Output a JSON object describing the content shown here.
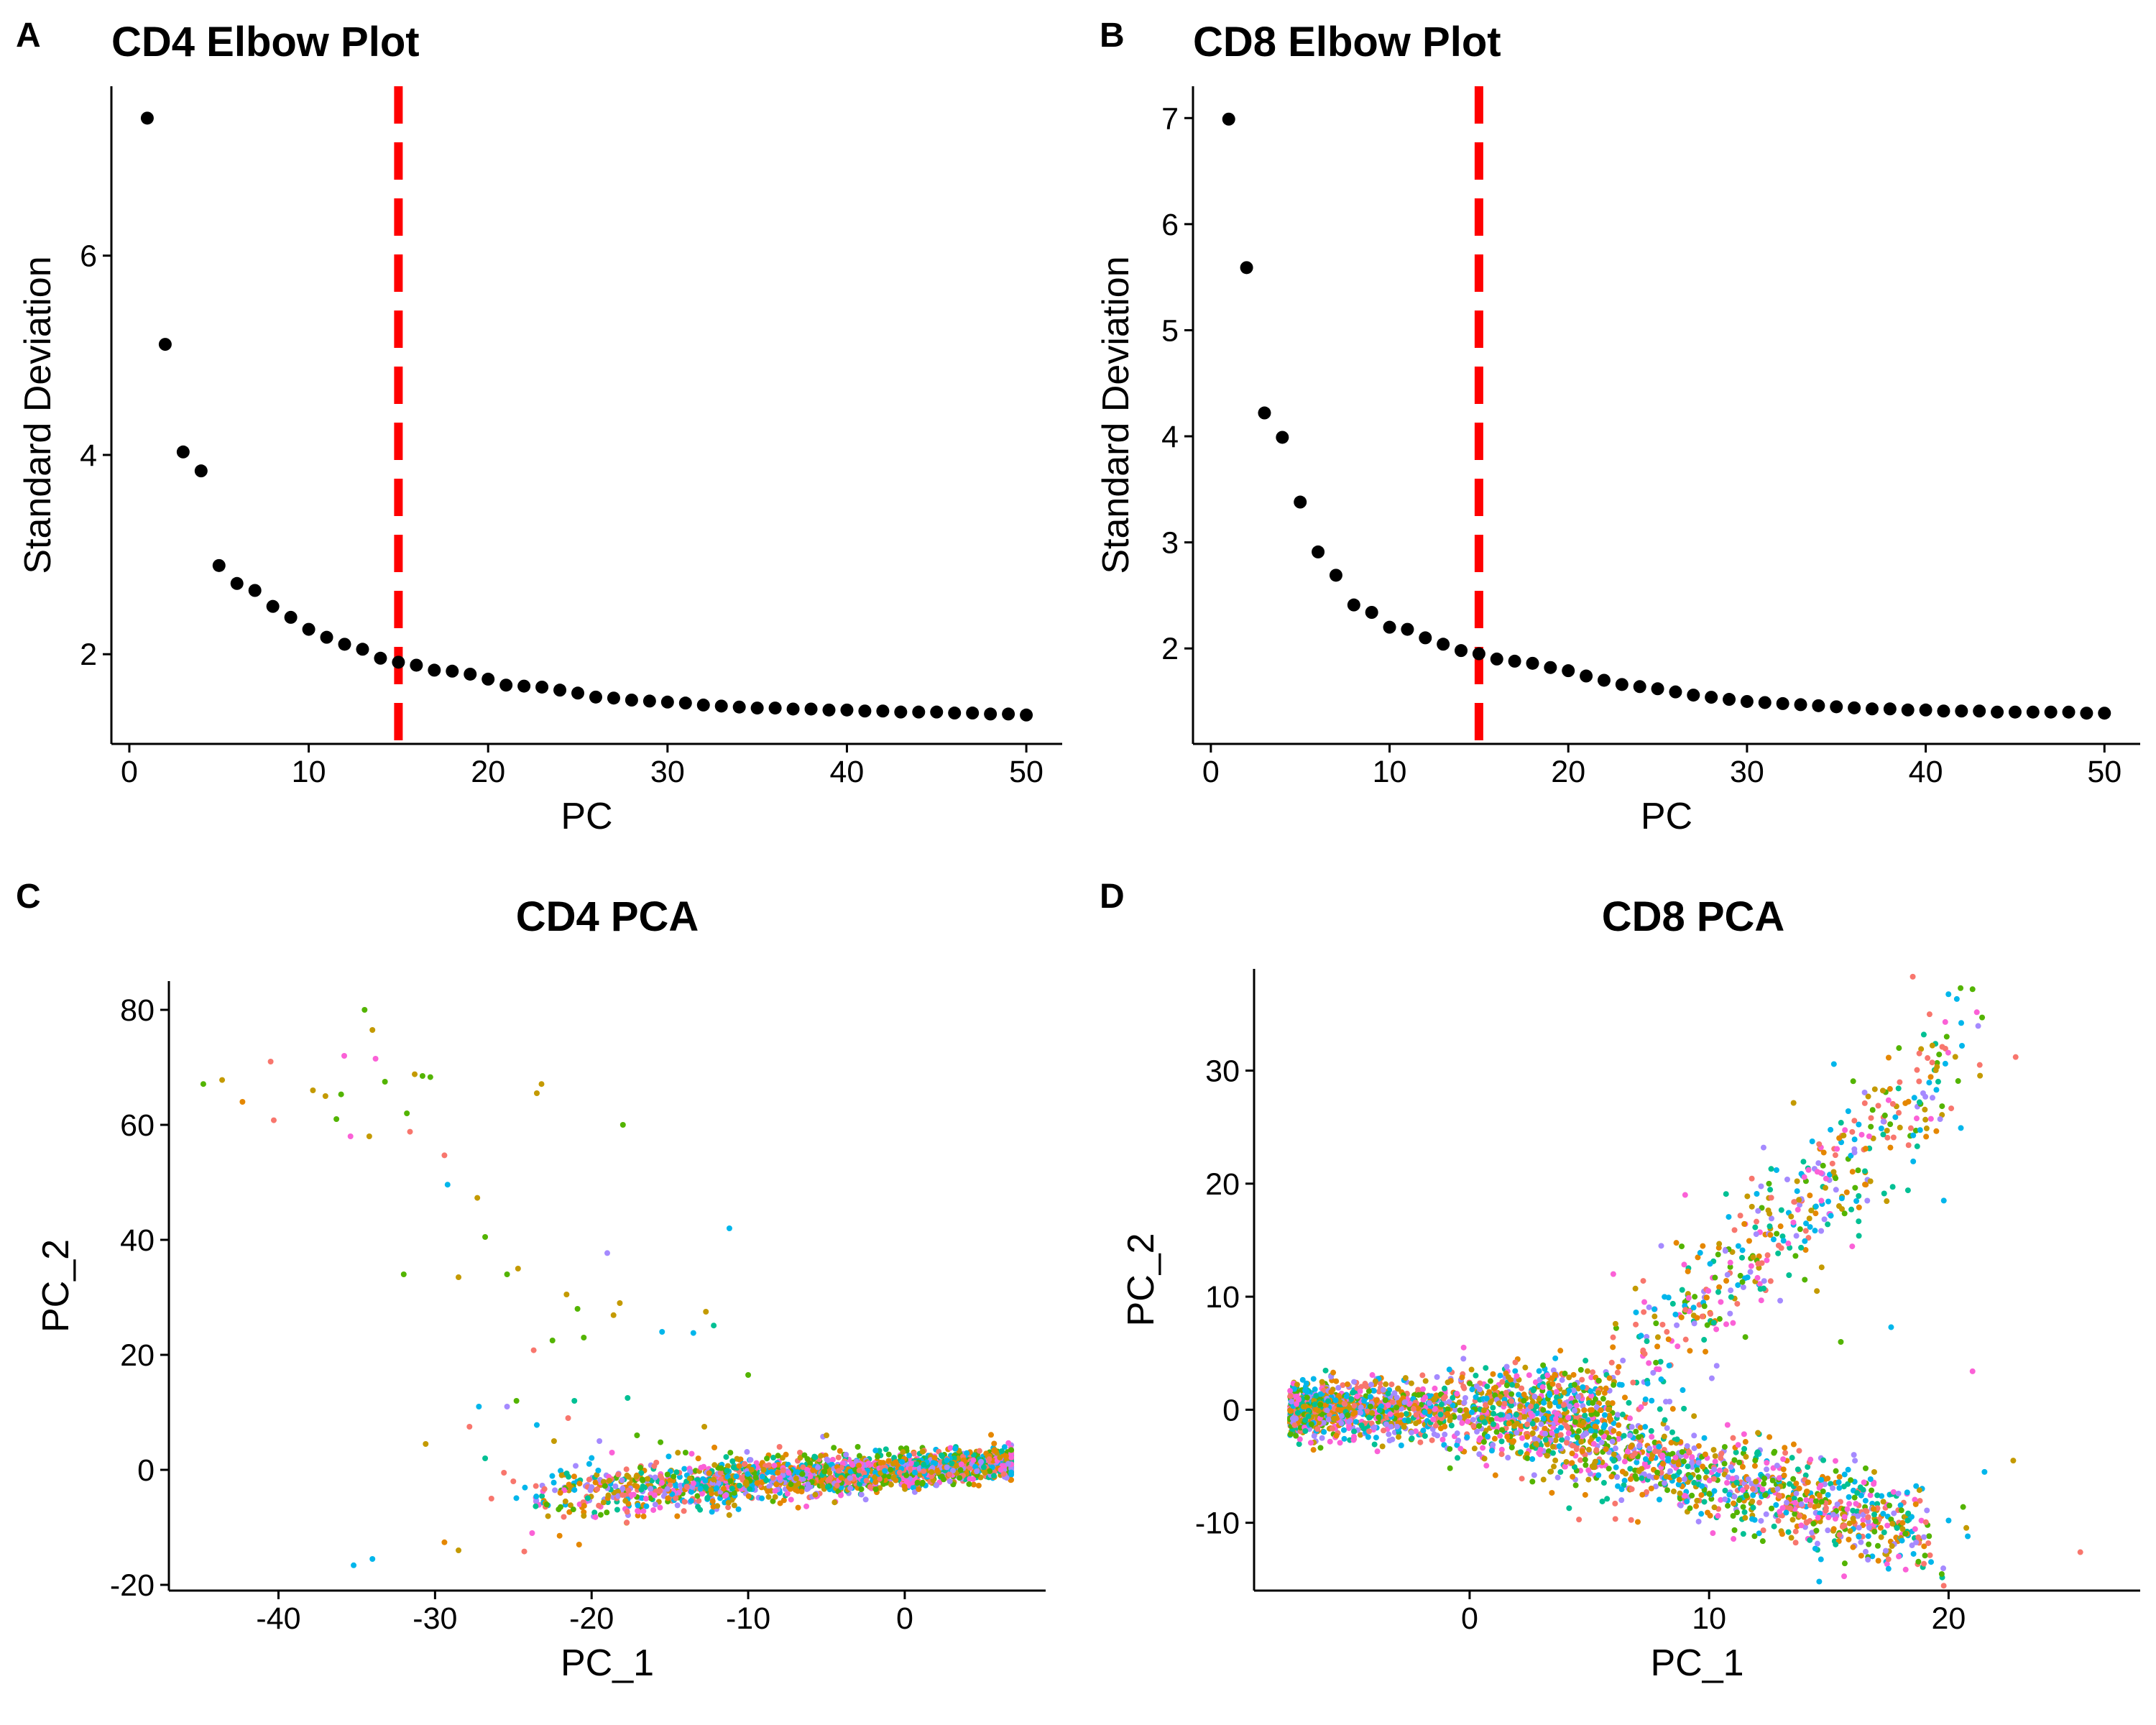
{
  "chart_data": [
    {
      "panel": "A",
      "type": "scatter",
      "title": "CD4 Elbow Plot",
      "xlabel": "PC",
      "ylabel": "Standard Deviation",
      "xlim": [
        -1,
        52
      ],
      "ylim": [
        1.1,
        7.7
      ],
      "xticks": [
        0,
        10,
        20,
        30,
        40,
        50
      ],
      "yticks": [
        2,
        4,
        6
      ],
      "point_color": "#000000",
      "cutoff_line": {
        "x": 15,
        "color": "#ff0000",
        "style": "dashed"
      },
      "x": [
        1,
        2,
        3,
        4,
        5,
        6,
        7,
        8,
        9,
        10,
        11,
        12,
        13,
        14,
        15,
        16,
        17,
        18,
        19,
        20,
        21,
        22,
        23,
        24,
        25,
        26,
        27,
        28,
        29,
        30,
        31,
        32,
        33,
        34,
        35,
        36,
        37,
        38,
        39,
        40,
        41,
        42,
        43,
        44,
        45,
        46,
        47,
        48,
        49,
        50
      ],
      "y": [
        7.38,
        5.11,
        4.03,
        3.84,
        2.89,
        2.71,
        2.64,
        2.48,
        2.37,
        2.25,
        2.17,
        2.1,
        2.05,
        1.96,
        1.92,
        1.89,
        1.84,
        1.83,
        1.8,
        1.75,
        1.69,
        1.68,
        1.67,
        1.64,
        1.61,
        1.57,
        1.56,
        1.54,
        1.53,
        1.52,
        1.51,
        1.49,
        1.48,
        1.47,
        1.46,
        1.46,
        1.45,
        1.45,
        1.44,
        1.44,
        1.43,
        1.43,
        1.42,
        1.42,
        1.42,
        1.41,
        1.41,
        1.4,
        1.4,
        1.39
      ]
    },
    {
      "panel": "B",
      "type": "scatter",
      "title": "CD8 Elbow Plot",
      "xlabel": "PC",
      "ylabel": "Standard Deviation",
      "xlim": [
        -1,
        52
      ],
      "ylim": [
        1.1,
        7.3
      ],
      "xticks": [
        0,
        10,
        20,
        30,
        40,
        50
      ],
      "yticks": [
        2,
        3,
        4,
        5,
        6,
        7
      ],
      "point_color": "#000000",
      "cutoff_line": {
        "x": 15,
        "color": "#ff0000",
        "style": "dashed"
      },
      "x": [
        1,
        2,
        3,
        4,
        5,
        6,
        7,
        8,
        9,
        10,
        11,
        12,
        13,
        14,
        15,
        16,
        17,
        18,
        19,
        20,
        21,
        22,
        23,
        24,
        25,
        26,
        27,
        28,
        29,
        30,
        31,
        32,
        33,
        34,
        35,
        36,
        37,
        38,
        39,
        40,
        41,
        42,
        43,
        44,
        45,
        46,
        47,
        48,
        49,
        50
      ],
      "y": [
        6.99,
        5.59,
        4.22,
        3.99,
        3.38,
        2.91,
        2.69,
        2.41,
        2.34,
        2.2,
        2.18,
        2.1,
        2.04,
        1.98,
        1.95,
        1.9,
        1.88,
        1.86,
        1.82,
        1.79,
        1.74,
        1.7,
        1.66,
        1.64,
        1.62,
        1.59,
        1.56,
        1.54,
        1.52,
        1.5,
        1.49,
        1.48,
        1.47,
        1.46,
        1.45,
        1.44,
        1.43,
        1.43,
        1.42,
        1.42,
        1.41,
        1.41,
        1.41,
        1.4,
        1.4,
        1.4,
        1.4,
        1.4,
        1.39,
        1.39
      ]
    },
    {
      "panel": "C",
      "type": "scatter",
      "title": "CD4 PCA",
      "xlabel": "PC_1",
      "ylabel": "PC_2",
      "xlim": [
        -47,
        9
      ],
      "ylim": [
        -21,
        85
      ],
      "xticks": [
        -40,
        -30,
        -20,
        -10,
        0
      ],
      "yticks": [
        -20,
        0,
        20,
        40,
        60,
        80
      ],
      "colors": [
        "#f8766d",
        "#c49a00",
        "#53b400",
        "#00c094",
        "#00b6eb",
        "#a58aff",
        "#fb61d7",
        "#e58700"
      ],
      "points": [
        [
          -44.8,
          67.1,
          2
        ],
        [
          -43.6,
          67.8,
          1
        ],
        [
          -42.3,
          64,
          7
        ],
        [
          -40.5,
          71,
          0
        ],
        [
          -40.3,
          60.8,
          0
        ],
        [
          -37.8,
          66,
          1
        ],
        [
          -37,
          65,
          1
        ],
        [
          -36.3,
          61,
          2
        ],
        [
          -36,
          65.3,
          2
        ],
        [
          -35.8,
          72,
          6
        ],
        [
          -35.4,
          58,
          6
        ],
        [
          -34.5,
          80,
          2
        ],
        [
          -34.2,
          58,
          1
        ],
        [
          -34,
          76.5,
          1
        ],
        [
          -33.8,
          71.5,
          6
        ],
        [
          -33.2,
          67.5,
          2
        ],
        [
          -31.8,
          62,
          2
        ],
        [
          -31.6,
          58.8,
          0
        ],
        [
          -31.3,
          68.8,
          1
        ],
        [
          -30.8,
          68.5,
          2
        ],
        [
          -30.3,
          68.3,
          2
        ],
        [
          -29.4,
          54.7,
          0
        ],
        [
          -29.2,
          49.6,
          4
        ],
        [
          -27.3,
          47.3,
          1
        ],
        [
          -26.8,
          40.5,
          2
        ],
        [
          -25.4,
          34,
          2
        ],
        [
          -24.7,
          35,
          1
        ],
        [
          -23.7,
          20.8,
          0
        ],
        [
          -23.5,
          65.5,
          1
        ],
        [
          -23.2,
          67.1,
          1
        ],
        [
          -22.5,
          22.5,
          2
        ],
        [
          -21.6,
          30.5,
          1
        ],
        [
          -20.9,
          28,
          2
        ],
        [
          -20.5,
          23,
          2
        ],
        [
          -19,
          37.7,
          5
        ],
        [
          -18.6,
          26.9,
          1
        ],
        [
          -18.2,
          29,
          1
        ],
        [
          -18,
          60,
          2
        ],
        [
          -15.5,
          24,
          4
        ],
        [
          -13.5,
          23.8,
          4
        ],
        [
          -12.7,
          27.5,
          1
        ],
        [
          -12.2,
          25.1,
          3
        ],
        [
          -11.2,
          42,
          4
        ],
        [
          -10,
          16.5,
          2
        ],
        [
          -35.2,
          -16.6,
          4
        ],
        [
          -34,
          -15.5,
          4
        ],
        [
          -29.4,
          -12.6,
          7
        ],
        [
          -28.5,
          -14,
          1
        ],
        [
          -27.8,
          7.5,
          0
        ],
        [
          -27.2,
          11,
          4
        ],
        [
          -26.8,
          2,
          3
        ],
        [
          -25.6,
          -0.5,
          0
        ],
        [
          -25.4,
          11,
          5
        ],
        [
          -24.8,
          12,
          2
        ],
        [
          -24.3,
          -14.2,
          0
        ],
        [
          -23.8,
          -11,
          6
        ],
        [
          -23.5,
          7.8,
          4
        ],
        [
          -22.4,
          5,
          1
        ],
        [
          -21.5,
          9,
          0
        ],
        [
          -21.1,
          12,
          3
        ],
        [
          -20.8,
          -13,
          7
        ],
        [
          -20.5,
          -8,
          1
        ],
        [
          -19.5,
          5,
          5
        ],
        [
          -18.7,
          3,
          6
        ],
        [
          -17.7,
          12.5,
          3
        ],
        [
          -17.1,
          6,
          2
        ],
        [
          -15.6,
          4.8,
          2
        ],
        [
          -14,
          3,
          2
        ],
        [
          -12.8,
          7.5,
          1
        ],
        [
          -11,
          1.5,
          3
        ],
        [
          -30.6,
          4.5,
          1
        ],
        [
          -32,
          34,
          2
        ],
        [
          -28.5,
          33.5,
          1
        ],
        [
          -26.4,
          -5,
          0
        ],
        [
          -25,
          -2,
          0
        ],
        [
          -22,
          -4,
          7
        ],
        [
          -20,
          -3,
          5
        ],
        [
          -8,
          4,
          0
        ],
        [
          -5,
          6,
          1
        ],
        [
          -3,
          4,
          2
        ]
      ],
      "band": {
        "x_start": -25,
        "x_end": 7,
        "slope": 0.2,
        "intercept": 0,
        "half_width": 4.5,
        "count": 1900
      }
    },
    {
      "panel": "D",
      "type": "scatter",
      "title": "CD8 PCA",
      "xlabel": "PC_1",
      "ylabel": "PC_2",
      "xlim": [
        -9,
        28
      ],
      "ylim": [
        -16,
        39
      ],
      "xticks": [
        0,
        10,
        20
      ],
      "yticks": [
        -10,
        0,
        10,
        20,
        30
      ],
      "colors": [
        "#f8766d",
        "#c49a00",
        "#53b400",
        "#00c094",
        "#00b6eb",
        "#a58aff",
        "#fb61d7",
        "#e58700"
      ],
      "points": [
        [
          20.5,
          37.3,
          2
        ],
        [
          21,
          37.2,
          2
        ],
        [
          21.4,
          34.7,
          2
        ],
        [
          22.8,
          31.2,
          0
        ],
        [
          21.3,
          30.5,
          0
        ],
        [
          19.8,
          18.5,
          4
        ],
        [
          21,
          3.4,
          6
        ],
        [
          17.6,
          7.3,
          4
        ],
        [
          15.5,
          6,
          2
        ],
        [
          14.5,
          10.5,
          1
        ],
        [
          12.5,
          20,
          2
        ],
        [
          25.5,
          -12.6,
          0
        ],
        [
          22.7,
          -4.5,
          1
        ],
        [
          20.8,
          -11.2,
          4
        ],
        [
          20,
          -9.8,
          4
        ],
        [
          21.5,
          -5.5,
          4
        ],
        [
          11,
          -2.5,
          0
        ],
        [
          8,
          14.5,
          5
        ],
        [
          6,
          12,
          6
        ],
        [
          9,
          19,
          6
        ]
      ],
      "clusters": [
        {
          "name": "main",
          "x_start": -7.5,
          "x_end": 6,
          "y_center": 0,
          "spread": 2.2,
          "count": 1500
        },
        {
          "name": "lower-branch",
          "x_start": 2,
          "x_end": 19,
          "slope": -0.58,
          "intercept": 0,
          "spread": 2.2,
          "count": 1100
        },
        {
          "name": "upper-branch",
          "x_start": 6,
          "x_end": 20.5,
          "slope": 1.95,
          "intercept": -9,
          "spread": 3.2,
          "count": 450
        }
      ]
    }
  ]
}
